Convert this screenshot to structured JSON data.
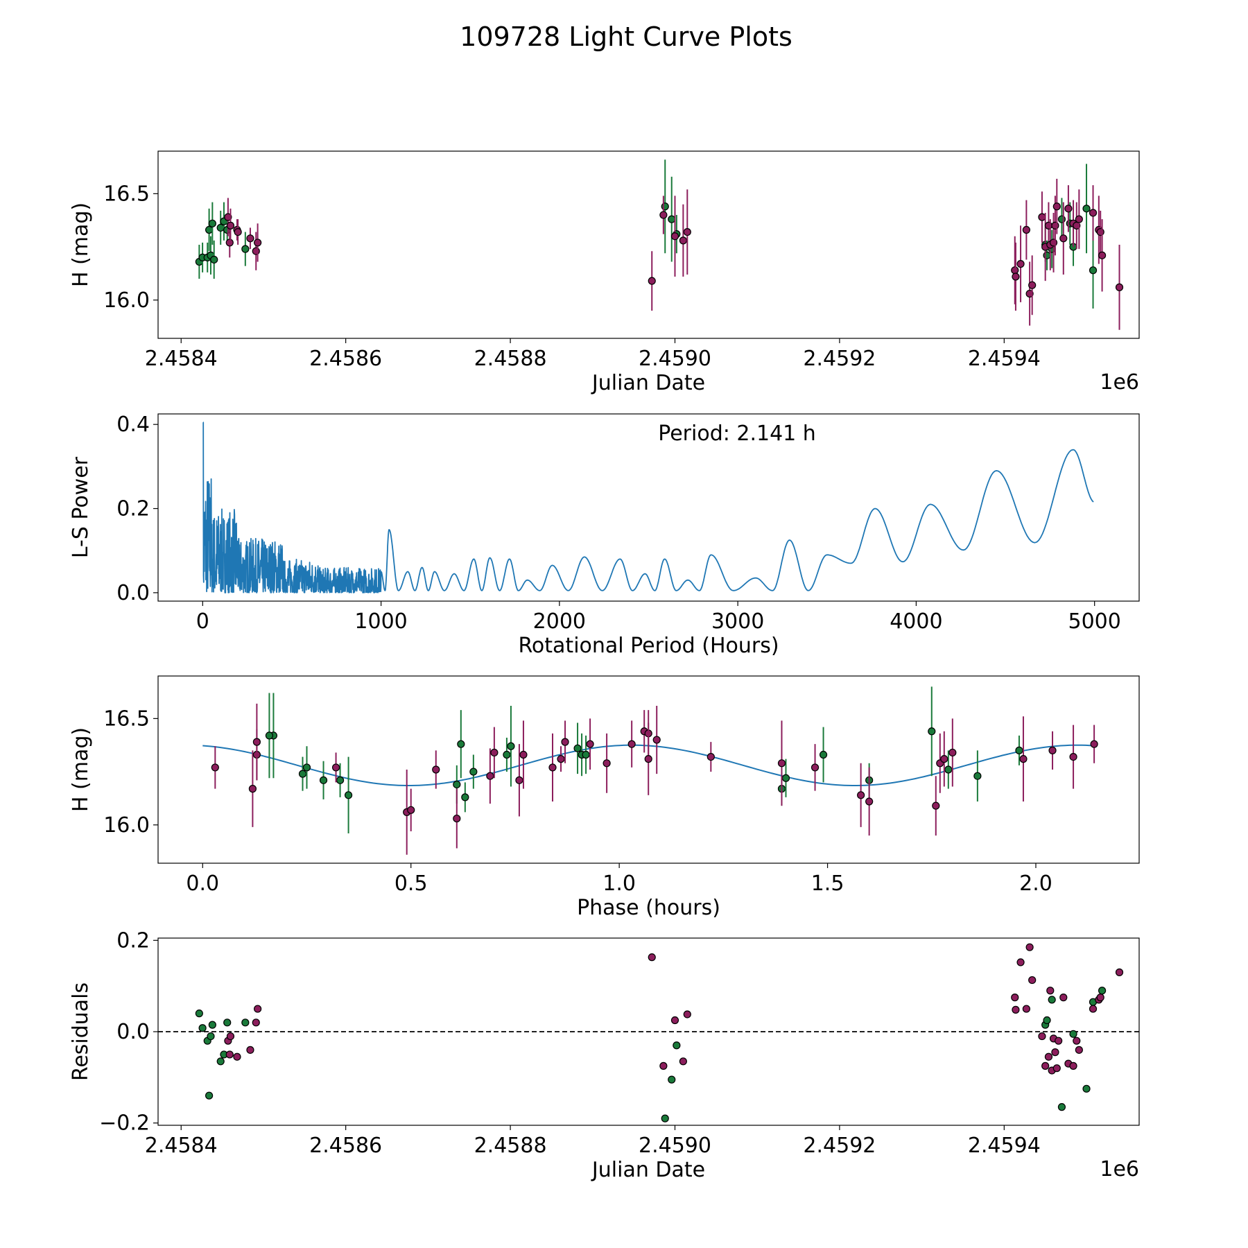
{
  "figure_title": "109728 Light Curve Plots",
  "colors": {
    "zg": "#1a7a3a",
    "zr": "#8c1e5c",
    "curve": "#1f77b4",
    "edge": "#000000"
  },
  "chart_data": [
    {
      "type": "scatter",
      "name": "light-curve",
      "xlabel": "Julian Date",
      "ylabel": "H (mag)",
      "offset_label": "1e6",
      "xlim": [
        2458372,
        2459564
      ],
      "ylim": [
        15.82,
        16.7
      ],
      "xticks": [
        2458400,
        2458600,
        2458800,
        2459000,
        2459200,
        2459400
      ],
      "xtick_labels": [
        "2.4584",
        "2.4586",
        "2.4588",
        "2.4590",
        "2.4592",
        "2.4594"
      ],
      "yticks": [
        16.0,
        16.5
      ],
      "ytick_labels": [
        "16.0",
        "16.5"
      ],
      "series": [
        {
          "name": "green",
          "color_key": "zg",
          "x": [
            2458422,
            2458426,
            2458432,
            2458434,
            2458436,
            2458438,
            2458440,
            2458448,
            2458452,
            2458456,
            2458478,
            2458988,
            2458996,
            2459002,
            2459450,
            2459452,
            2459458,
            2459470,
            2459480,
            2459484,
            2459500,
            2459508
          ],
          "y": [
            16.18,
            16.2,
            16.2,
            16.33,
            16.21,
            16.36,
            16.19,
            16.34,
            16.37,
            16.33,
            16.24,
            16.44,
            16.38,
            16.31,
            16.26,
            16.21,
            16.24,
            16.38,
            16.36,
            16.25,
            16.43,
            16.14
          ],
          "err": [
            0.08,
            0.07,
            0.07,
            0.1,
            0.09,
            0.1,
            0.09,
            0.08,
            0.09,
            0.07,
            0.08,
            0.22,
            0.2,
            0.09,
            0.08,
            0.07,
            0.09,
            0.1,
            0.1,
            0.09,
            0.21,
            0.18
          ]
        },
        {
          "name": "red",
          "color_key": "zr",
          "x": [
            2458457,
            2458459,
            2458460,
            2458468,
            2458469,
            2458484,
            2458491,
            2458493,
            2458972,
            2458986,
            2459000,
            2459010,
            2459015,
            2459413,
            2459414,
            2459420,
            2459427,
            2459431,
            2459434,
            2459446,
            2459450,
            2459454,
            2459456,
            2459460,
            2459462,
            2459464,
            2459472,
            2459478,
            2459484,
            2459488,
            2459491,
            2459508,
            2459515,
            2459517,
            2459519,
            2459540
          ],
          "y": [
            16.39,
            16.27,
            16.35,
            16.33,
            16.32,
            16.29,
            16.23,
            16.27,
            16.09,
            16.4,
            16.3,
            16.28,
            16.32,
            16.14,
            16.11,
            16.17,
            16.33,
            16.03,
            16.07,
            16.39,
            16.25,
            16.35,
            16.26,
            16.27,
            16.35,
            16.44,
            16.29,
            16.43,
            16.36,
            16.35,
            16.38,
            16.41,
            16.33,
            16.32,
            16.21,
            16.06
          ],
          "err": [
            0.09,
            0.07,
            0.08,
            0.05,
            0.06,
            0.05,
            0.09,
            0.09,
            0.14,
            0.09,
            0.19,
            0.17,
            0.2,
            0.16,
            0.16,
            0.18,
            0.14,
            0.15,
            0.14,
            0.12,
            0.16,
            0.11,
            0.12,
            0.14,
            0.14,
            0.13,
            0.17,
            0.11,
            0.11,
            0.11,
            0.14,
            0.13,
            0.16,
            0.1,
            0.17,
            0.2
          ]
        }
      ]
    },
    {
      "type": "line",
      "name": "periodogram",
      "xlabel": "Rotational Period (Hours)",
      "ylabel": "L-S Power",
      "annotation": "Period: 2.141 h",
      "xlim": [
        -250,
        5250
      ],
      "ylim": [
        -0.02,
        0.425
      ],
      "xticks": [
        0,
        1000,
        2000,
        3000,
        4000,
        5000
      ],
      "xtick_labels": [
        "0",
        "1000",
        "2000",
        "3000",
        "4000",
        "5000"
      ],
      "yticks": [
        0.0,
        0.2,
        0.4
      ],
      "ytick_labels": [
        "0.0",
        "0.2",
        "0.4"
      ],
      "x_range": [
        2.141,
        5000
      ],
      "peaks": [
        [
          1045,
          0.15
        ],
        [
          1150,
          0.05
        ],
        [
          1230,
          0.06
        ],
        [
          1300,
          0.05
        ],
        [
          1410,
          0.045
        ],
        [
          1520,
          0.08
        ],
        [
          1610,
          0.083
        ],
        [
          1720,
          0.08
        ],
        [
          1820,
          0.03
        ],
        [
          1960,
          0.065
        ],
        [
          2140,
          0.085
        ],
        [
          2340,
          0.08
        ],
        [
          2480,
          0.045
        ],
        [
          2590,
          0.08
        ],
        [
          2720,
          0.03
        ],
        [
          2850,
          0.09
        ],
        [
          3100,
          0.035
        ],
        [
          3290,
          0.125
        ],
        [
          3500,
          0.09
        ],
        [
          3770,
          0.2
        ],
        [
          4080,
          0.21
        ],
        [
          4450,
          0.29
        ],
        [
          4880,
          0.34
        ]
      ],
      "end_value": 0.215
    },
    {
      "type": "scatter",
      "name": "phase-folded",
      "xlabel": "Phase (hours)",
      "ylabel": "H (mag)",
      "xlim": [
        -0.107,
        2.248
      ],
      "ylim": [
        15.82,
        16.7
      ],
      "xticks": [
        0.0,
        0.5,
        1.0,
        1.5,
        2.0
      ],
      "xtick_labels": [
        "0.0",
        "0.5",
        "1.0",
        "1.5",
        "2.0"
      ],
      "yticks": [
        16.0,
        16.5
      ],
      "ytick_labels": [
        "16.0",
        "16.5"
      ],
      "model": {
        "mean": 16.28,
        "amplitude": 0.095,
        "period_h": 1.07,
        "peak_phase_h": 1.03
      },
      "series": [
        {
          "name": "green",
          "color_key": "zg",
          "x": [
            0.17,
            0.24,
            0.25,
            0.29,
            0.33,
            0.35,
            0.61,
            0.62,
            0.63,
            0.65,
            0.73,
            0.74,
            0.9,
            0.91,
            0.92,
            1.39,
            1.4,
            1.49,
            1.6,
            1.75,
            1.79,
            1.86,
            1.96,
            0.16
          ],
          "y": [
            16.42,
            16.24,
            16.27,
            16.21,
            16.21,
            16.14,
            16.19,
            16.38,
            16.13,
            16.25,
            16.33,
            16.37,
            16.36,
            16.33,
            16.33,
            16.17,
            16.22,
            16.33,
            16.21,
            16.44,
            16.26,
            16.23,
            16.35,
            16.42
          ],
          "err": [
            0.2,
            0.08,
            0.1,
            0.09,
            0.08,
            0.18,
            0.09,
            0.16,
            0.07,
            0.08,
            0.08,
            0.19,
            0.12,
            0.1,
            0.09,
            0.08,
            0.09,
            0.13,
            0.08,
            0.21,
            0.09,
            0.12,
            0.07,
            0.2
          ]
        },
        {
          "name": "red",
          "color_key": "zr",
          "x": [
            0.03,
            0.12,
            0.13,
            0.13,
            0.32,
            0.49,
            0.5,
            0.56,
            0.61,
            0.69,
            0.7,
            0.76,
            0.77,
            0.84,
            0.86,
            0.87,
            0.93,
            0.97,
            1.03,
            1.06,
            1.07,
            1.07,
            1.09,
            1.22,
            1.39,
            1.47,
            1.58,
            1.6,
            1.76,
            1.77,
            1.78,
            1.8,
            1.97,
            2.04,
            2.09,
            2.14
          ],
          "y": [
            16.27,
            16.17,
            16.33,
            16.39,
            16.27,
            16.06,
            16.07,
            16.26,
            16.03,
            16.23,
            16.34,
            16.21,
            16.33,
            16.27,
            16.31,
            16.39,
            16.38,
            16.29,
            16.38,
            16.44,
            16.43,
            16.31,
            16.4,
            16.32,
            16.29,
            16.27,
            16.14,
            16.11,
            16.09,
            16.29,
            16.31,
            16.34,
            16.31,
            16.35,
            16.32,
            16.38
          ],
          "err": [
            0.1,
            0.18,
            0.12,
            0.18,
            0.07,
            0.2,
            0.1,
            0.09,
            0.14,
            0.13,
            0.12,
            0.17,
            0.16,
            0.16,
            0.06,
            0.1,
            0.12,
            0.14,
            0.11,
            0.1,
            0.11,
            0.17,
            0.16,
            0.07,
            0.2,
            0.11,
            0.15,
            0.16,
            0.14,
            0.14,
            0.13,
            0.16,
            0.2,
            0.09,
            0.15,
            0.09
          ]
        }
      ]
    },
    {
      "type": "scatter",
      "name": "residuals",
      "xlabel": "Julian Date",
      "ylabel": "Residuals",
      "offset_label": "1e6",
      "xlim": [
        2458372,
        2459564
      ],
      "ylim": [
        -0.205,
        0.205
      ],
      "xticks": [
        2458400,
        2458600,
        2458800,
        2459000,
        2459200,
        2459400
      ],
      "xtick_labels": [
        "2.4584",
        "2.4586",
        "2.4588",
        "2.4590",
        "2.4592",
        "2.4594"
      ],
      "yticks": [
        -0.2,
        0.0,
        0.2
      ],
      "ytick_labels": [
        "−0.2",
        "0.0",
        "0.2"
      ],
      "reference_line": 0.0,
      "series": [
        {
          "name": "green",
          "color_key": "zg",
          "x": [
            2458422,
            2458426,
            2458432,
            2458434,
            2458436,
            2458438,
            2458448,
            2458452,
            2458456,
            2458478,
            2458988,
            2458996,
            2459002,
            2459450,
            2459452,
            2459458,
            2459470,
            2459484,
            2459500,
            2459508,
            2459519
          ],
          "y": [
            0.04,
            0.008,
            -0.02,
            -0.14,
            -0.01,
            0.015,
            -0.065,
            -0.05,
            0.02,
            0.02,
            -0.19,
            -0.105,
            -0.03,
            0.015,
            0.025,
            0.07,
            -0.165,
            -0.005,
            -0.125,
            0.065,
            0.09
          ]
        },
        {
          "name": "red",
          "color_key": "zr",
          "x": [
            2458457,
            2458459,
            2458460,
            2458468,
            2458484,
            2458491,
            2458493,
            2458972,
            2458986,
            2459000,
            2459010,
            2459015,
            2459413,
            2459414,
            2459420,
            2459427,
            2459431,
            2459434,
            2459446,
            2459450,
            2459454,
            2459456,
            2459458,
            2459460,
            2459462,
            2459464,
            2459466,
            2459472,
            2459478,
            2459484,
            2459488,
            2459491,
            2459508,
            2459515,
            2459517,
            2459540
          ],
          "y": [
            -0.02,
            -0.05,
            -0.01,
            -0.055,
            -0.04,
            0.02,
            0.05,
            0.163,
            -0.075,
            0.025,
            -0.065,
            0.038,
            0.075,
            0.048,
            0.152,
            0.05,
            0.185,
            0.113,
            -0.01,
            -0.075,
            -0.055,
            0.09,
            -0.085,
            -0.015,
            -0.045,
            -0.08,
            -0.02,
            0.075,
            -0.07,
            -0.075,
            -0.02,
            -0.04,
            0.05,
            0.07,
            0.075,
            0.13
          ]
        }
      ]
    }
  ]
}
